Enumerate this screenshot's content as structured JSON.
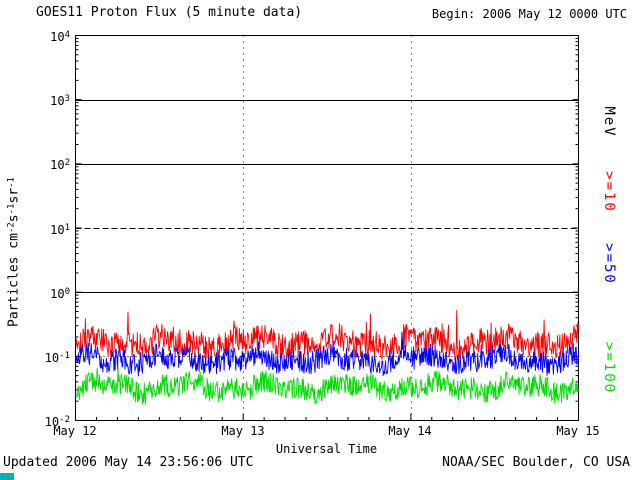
{
  "page": {
    "begin_label": "Begin: 2006 May 12 0000 UTC",
    "updated": "Updated 2006 May 14 23:56:06 UTC",
    "credit": "NOAA/SEC Boulder, CO USA"
  },
  "chart_data": {
    "type": "line",
    "title": "GOES11 Proton Flux (5 minute data)",
    "xlabel": "Universal Time",
    "ylabel": "Particles cm-2 s-1 sr-1",
    "ylabel_parts": {
      "t1": "Particles cm",
      "e1": "-2",
      "t2": "s",
      "e2": "-1",
      "t3": "sr",
      "e3": "-1"
    },
    "x_start": "2006 May 12 0000 UTC",
    "x_end": "2006 May 15 0000 UTC",
    "cadence_minutes": 5,
    "n_points": 864,
    "y_scale": "log10",
    "ylim": [
      0.01,
      10000
    ],
    "grid": "partial",
    "legend_position": "right",
    "right_axis_unit": "MeV",
    "xticks": [
      "May 12",
      "May 13",
      "May 14",
      "May 15"
    ],
    "yticks": [
      {
        "base": "10",
        "exp": "4"
      },
      {
        "base": "10",
        "exp": "3"
      },
      {
        "base": "10",
        "exp": "2"
      },
      {
        "base": "10",
        "exp": "1"
      },
      {
        "base": "10",
        "exp": "0"
      },
      {
        "base": "10",
        "exp": "-1"
      },
      {
        "base": "10",
        "exp": "-2"
      }
    ],
    "hlines": [
      {
        "value": 1000,
        "style": "solid"
      },
      {
        "value": 100,
        "style": "solid"
      },
      {
        "value": 10,
        "style": "dashed"
      },
      {
        "value": 1,
        "style": "solid"
      },
      {
        "value": 0.1,
        "style": "dotted"
      }
    ],
    "vline_xticks": [
      1,
      2
    ],
    "series": [
      {
        "name": "protons_ge_10MeV",
        "label": ">=10",
        "unit": "MeV",
        "color": "#ff0000",
        "approx_median_flux": 0.17,
        "approx_flux_range": [
          0.09,
          0.5
        ],
        "log10_mean": -0.78,
        "log10_jitter": 0.21,
        "spike_prob": 0.02,
        "spike_max": 0.45,
        "seed": 101
      },
      {
        "name": "protons_ge_50MeV",
        "label": ">=50",
        "unit": "MeV",
        "color": "#0000ff",
        "approx_median_flux": 0.09,
        "approx_flux_range": [
          0.05,
          0.16
        ],
        "log10_mean": -1.05,
        "log10_jitter": 0.18,
        "spike_prob": 0.012,
        "spike_max": 0.25,
        "seed": 202
      },
      {
        "name": "protons_ge_100MeV",
        "label": ">=100",
        "unit": "MeV",
        "color": "#00dd00",
        "approx_median_flux": 0.033,
        "approx_flux_range": [
          0.017,
          0.07
        ],
        "log10_mean": -1.48,
        "log10_jitter": 0.17,
        "spike_prob": 0.012,
        "spike_max": 0.25,
        "seed": 303
      }
    ]
  },
  "artifact": {
    "color": "#00b2b2"
  }
}
